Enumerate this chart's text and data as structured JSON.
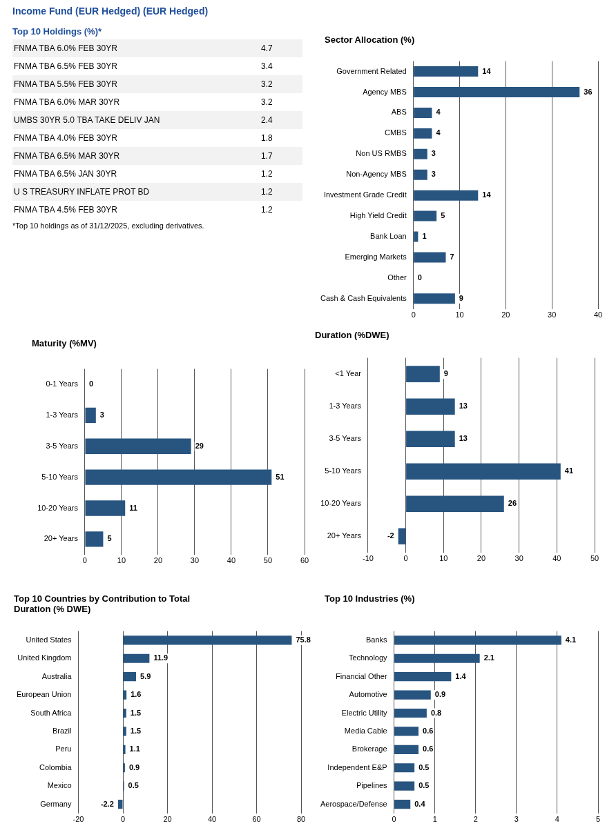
{
  "chart_data": [
    {
      "type": "other",
      "title": "Income Fund (EUR Hedged) (EUR Hedged)",
      "subtitle": "Top 10 Holdings (%)*",
      "categories": [
        "FNMA TBA 6.0% FEB 30YR",
        "FNMA TBA 6.5% FEB 30YR",
        "FNMA TBA 5.5% FEB 30YR",
        "FNMA TBA 6.0% MAR 30YR",
        "UMBS 30YR 5.0 TBA TAKE DELIV JAN",
        "FNMA TBA 4.0% FEB 30YR",
        "FNMA TBA 6.5% MAR 30YR",
        "FNMA TBA 6.5% JAN 30YR",
        "U S TREASURY INFLATE PROT BD",
        "FNMA TBA 4.5% FEB 30YR"
      ],
      "values": [
        4.7,
        3.4,
        3.2,
        3.2,
        2.4,
        1.8,
        1.7,
        1.2,
        1.2,
        1.2
      ],
      "data_labels": true,
      "annotations": [
        "*Top 10 holdings as of 31/12/2025, excluding derivatives."
      ]
    },
    {
      "type": "bar",
      "orientation": "horizontal",
      "title": "Sector Allocation (%)",
      "categories": [
        "Government Related",
        "Agency MBS",
        "ABS",
        "CMBS",
        "Non US RMBS",
        "Non-Agency MBS",
        "Investment Grade Credit",
        "High Yield Credit",
        "Bank Loan",
        "Emerging Markets",
        "Other",
        "Cash & Cash Equivalents"
      ],
      "values": [
        14,
        36,
        4,
        4,
        3,
        3,
        14,
        5,
        1,
        7,
        0,
        9
      ],
      "color": "#285580",
      "xlim": [
        0,
        40
      ],
      "xticks": [
        0,
        10,
        20,
        30,
        40
      ],
      "grid": "x",
      "data_labels": true
    },
    {
      "type": "bar",
      "orientation": "horizontal",
      "title": "Maturity (%MV)",
      "categories": [
        "0-1 Years",
        "1-3 Years",
        "3-5 Years",
        "5-10 Years",
        "10-20 Years",
        "20+ Years"
      ],
      "values": [
        0,
        3,
        29,
        51,
        11,
        5
      ],
      "color": "#285580",
      "xlim": [
        0,
        60
      ],
      "xticks": [
        0,
        10,
        20,
        30,
        40,
        50,
        60
      ],
      "grid": "x",
      "data_labels": true
    },
    {
      "type": "bar",
      "orientation": "horizontal",
      "title": "Duration (%DWE)",
      "categories": [
        "<1 Year",
        "1-3 Years",
        "3-5 Years",
        "5-10 Years",
        "10-20 Years",
        "20+ Years"
      ],
      "values": [
        9,
        13,
        13,
        41,
        26,
        -2
      ],
      "color": "#285580",
      "xlim": [
        -10,
        50
      ],
      "xticks": [
        -10,
        0,
        10,
        20,
        30,
        40,
        50
      ],
      "grid": "x",
      "data_labels": true
    },
    {
      "type": "bar",
      "orientation": "horizontal",
      "title": "Top 10 Countries by Contribution to Total Duration (% DWE)",
      "categories": [
        "United States",
        "United Kingdom",
        "Australia",
        "European Union",
        "South Africa",
        "Brazil",
        "Peru",
        "Colombia",
        "Mexico",
        "Germany"
      ],
      "values": [
        75.8,
        11.9,
        5.9,
        1.6,
        1.5,
        1.5,
        1.1,
        0.9,
        0.5,
        -2.2
      ],
      "color": "#285580",
      "xlim": [
        -20,
        80
      ],
      "xticks": [
        -20,
        0,
        20,
        40,
        60,
        80
      ],
      "grid": "x",
      "data_labels": true
    },
    {
      "type": "bar",
      "orientation": "horizontal",
      "title": "Top 10 Industries (%)",
      "categories": [
        "Banks",
        "Technology",
        "Financial Other",
        "Automotive",
        "Electric Utility",
        "Media Cable",
        "Brokerage",
        "Independent E&P",
        "Pipelines",
        "Aerospace/Defense"
      ],
      "values": [
        4.1,
        2.1,
        1.4,
        0.9,
        0.8,
        0.6,
        0.6,
        0.5,
        0.5,
        0.4
      ],
      "color": "#285580",
      "xlim": [
        0,
        5
      ],
      "xticks": [
        0,
        1,
        2,
        3,
        4,
        5
      ],
      "grid": "x",
      "data_labels": true
    }
  ]
}
